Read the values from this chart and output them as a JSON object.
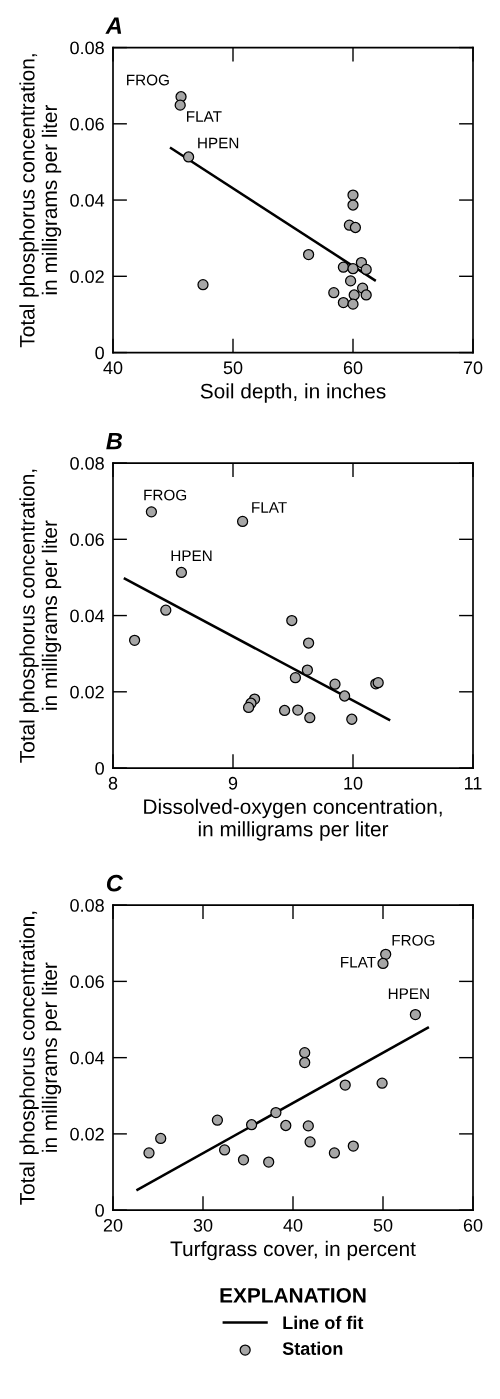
{
  "chart_data": [
    {
      "type": "scatter",
      "title": "A",
      "xlabel": "Soil depth, in inches",
      "ylabel": "Total phosphorus concentration,\nin milligrams per liter",
      "xlim": [
        40,
        70
      ],
      "xticks": [
        40,
        50,
        60,
        70
      ],
      "ylim": [
        0,
        0.08
      ],
      "yticks": [
        0,
        0.02,
        0.04,
        0.06,
        0.08
      ],
      "grid": false,
      "series": [
        {
          "type": "line",
          "color": "#000000",
          "x": [
            44.75,
            61.9
          ],
          "values": [
            0.0538,
            0.0188
          ]
        },
        {
          "marker": "circle",
          "color": "#a6a6a6",
          "x": [
            45.67,
            45.6,
            46.3,
            47.5,
            56.3,
            60.0,
            60.0,
            59.7,
            60.2,
            60.7,
            59.2,
            60.0,
            61.1,
            59.8,
            60.8,
            58.4,
            60.1,
            61.1,
            59.2,
            60.0
          ],
          "values": [
            0.0671,
            0.0649,
            0.0513,
            0.0178,
            0.0257,
            0.0413,
            0.0387,
            0.0334,
            0.0328,
            0.0236,
            0.0224,
            0.022,
            0.0218,
            0.0188,
            0.0169,
            0.0157,
            0.0151,
            0.0151,
            0.0131,
            0.0127
          ]
        }
      ],
      "annotations": [
        {
          "text": "FROG",
          "x": 45.67,
          "y": 0.0671
        },
        {
          "text": "FLAT",
          "x": 45.6,
          "y": 0.0649
        },
        {
          "text": "HPEN",
          "x": 46.3,
          "y": 0.0513
        }
      ]
    },
    {
      "type": "scatter",
      "title": "B",
      "xlabel": "Dissolved-oxygen concentration,\nin milligrams per liter",
      "ylabel": "Total phosphorus concentration,\nin milligrams per liter",
      "xlim": [
        8,
        11
      ],
      "xticks": [
        8,
        9,
        10,
        11
      ],
      "ylim": [
        0,
        0.08
      ],
      "yticks": [
        0,
        0.02,
        0.04,
        0.06,
        0.08
      ],
      "grid": false,
      "series": [
        {
          "type": "line",
          "color": "#000000",
          "x": [
            8.09,
            10.31
          ],
          "values": [
            0.0498,
            0.0125
          ]
        },
        {
          "marker": "circle",
          "color": "#a6a6a6",
          "x": [
            8.32,
            9.08,
            8.57,
            8.44,
            8.18,
            9.49,
            9.63,
            9.62,
            9.52,
            9.85,
            10.19,
            10.21,
            9.93,
            9.18,
            9.15,
            9.13,
            9.43,
            9.54,
            9.64,
            9.99
          ],
          "values": [
            0.0672,
            0.0647,
            0.0513,
            0.0414,
            0.0335,
            0.0387,
            0.0328,
            0.0257,
            0.0237,
            0.022,
            0.0221,
            0.0224,
            0.0189,
            0.0181,
            0.017,
            0.0159,
            0.0151,
            0.0152,
            0.0132,
            0.0128
          ]
        }
      ],
      "annotations": [
        {
          "text": "FROG",
          "x": 8.32,
          "y": 0.0672
        },
        {
          "text": "FLAT",
          "x": 9.08,
          "y": 0.0647
        },
        {
          "text": "HPEN",
          "x": 8.57,
          "y": 0.0513
        }
      ]
    },
    {
      "type": "scatter",
      "title": "C",
      "xlabel": "Turfgrass cover, in percent",
      "ylabel": "Total phosphorus concentration,\nin milligrams per liter",
      "xlim": [
        20,
        60
      ],
      "xticks": [
        20,
        30,
        40,
        50,
        60
      ],
      "ylim": [
        0,
        0.08
      ],
      "yticks": [
        0,
        0.02,
        0.04,
        0.06,
        0.08
      ],
      "grid": false,
      "legend": "bottom",
      "legend_title": "EXPLANATION",
      "series": [
        {
          "type": "line",
          "name": "Line of fit",
          "color": "#000000",
          "x": [
            22.6,
            55.1
          ],
          "values": [
            0.0052,
            0.048
          ]
        },
        {
          "marker": "circle",
          "name": "Station",
          "color": "#a6a6a6",
          "x": [
            50.3,
            50.0,
            53.6,
            41.3,
            41.3,
            45.8,
            49.9,
            38.1,
            31.6,
            35.4,
            39.2,
            41.7,
            25.3,
            41.9,
            46.7,
            32.4,
            24.0,
            44.6,
            34.5,
            37.3
          ],
          "values": [
            0.0671,
            0.0647,
            0.0513,
            0.0413,
            0.0387,
            0.0328,
            0.0333,
            0.0256,
            0.0236,
            0.0224,
            0.0222,
            0.0221,
            0.0188,
            0.0179,
            0.0168,
            0.0158,
            0.015,
            0.015,
            0.0132,
            0.0126
          ]
        }
      ],
      "annotations": [
        {
          "text": "FROG",
          "x": 50.3,
          "y": 0.0671
        },
        {
          "text": "FLAT",
          "x": 50.0,
          "y": 0.0647
        },
        {
          "text": "HPEN",
          "x": 53.6,
          "y": 0.0513
        }
      ]
    }
  ]
}
